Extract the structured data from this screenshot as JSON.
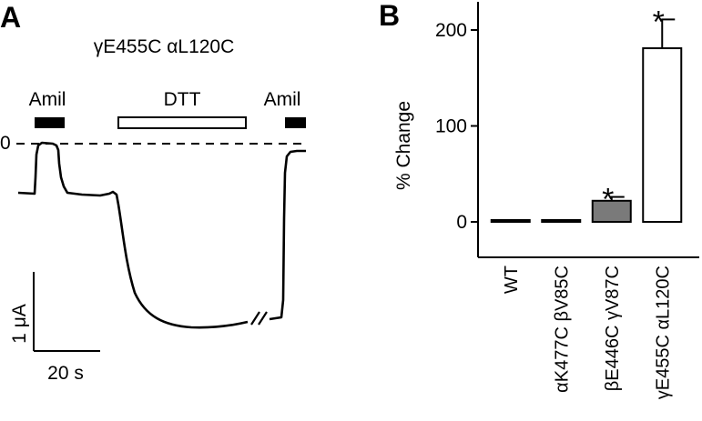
{
  "panel_a": {
    "letter": "A",
    "title": "γE455C αL120C",
    "bars": [
      {
        "label": "Amil",
        "style": "filled"
      },
      {
        "label": "DTT",
        "style": "open"
      },
      {
        "label": "Amil",
        "style": "filled"
      }
    ],
    "zero_label": "0",
    "scale_y_label": "1 μA",
    "scale_x_label": "20 s",
    "break_mark": "//"
  },
  "chart_data": {
    "type": "bar",
    "panel": "B",
    "categories": [
      "WT",
      "αK477C βV85C",
      "βE446C γV87C",
      "γE455C αL120C"
    ],
    "values": [
      1,
      1,
      22,
      181
    ],
    "errors": [
      1.5,
      1.5,
      4,
      30
    ],
    "significant": [
      false,
      false,
      true,
      true
    ],
    "significance_marker": "*",
    "fill_colors": [
      "#ffffff",
      "#ffffff",
      "#7a7a7a",
      "#ffffff"
    ],
    "ylabel": "% Change",
    "ylim": [
      -30,
      220
    ],
    "yticks": [
      0,
      100,
      200
    ],
    "xlabel": "",
    "title": ""
  },
  "panel_b": {
    "letter": "B"
  }
}
